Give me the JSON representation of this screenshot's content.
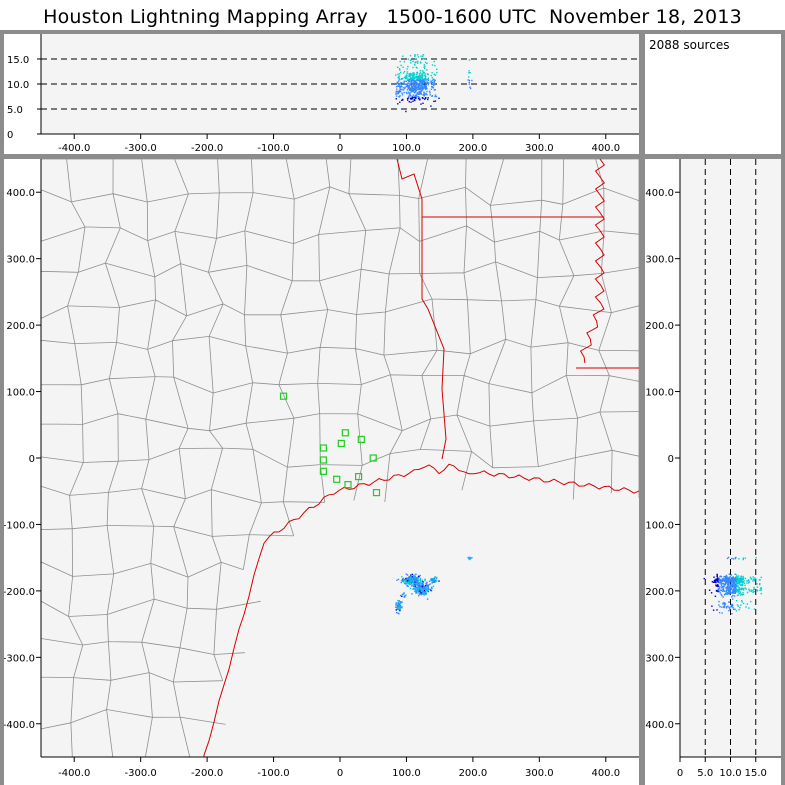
{
  "title": {
    "text": "Houston Lightning Mapping Array   1500-1600 UTC  November 18, 2013"
  },
  "source_count": "2088 sources",
  "colors": {
    "panel_bg": "#f4f4f4",
    "frame": "#8c8c8c",
    "county_lines": "#8f8f8f",
    "state_coast_lines": "#d40000",
    "stations": "#22cc22",
    "source_low": "#0000c8",
    "source_mid": "#3388ff",
    "source_high": "#00d0d0"
  },
  "axes": {
    "x_ticks": [
      "-400.0",
      "-300.0",
      "-200.0",
      "-100.0",
      "0",
      "100.0",
      "200.0",
      "300.0",
      "400.0"
    ],
    "y_ticks": [
      "400.0",
      "300.0",
      "200.0",
      "100.0",
      "0",
      "-100.0",
      "-200.0",
      "-300.0",
      "-400.0"
    ],
    "alt_ticks": [
      "0",
      "5.0",
      "10.0",
      "15.0"
    ]
  },
  "map": {
    "xlim_km": [
      -450,
      450
    ],
    "ylim_km": [
      -450,
      450
    ],
    "alt_km": [
      0,
      20
    ],
    "stations_km": [
      [
        -85,
        93
      ],
      [
        -25,
        15
      ],
      [
        -25,
        -20
      ],
      [
        -25,
        -3
      ],
      [
        -5,
        -32
      ],
      [
        2,
        22
      ],
      [
        8,
        38
      ],
      [
        12,
        -40
      ],
      [
        28,
        -28
      ],
      [
        32,
        28
      ],
      [
        50,
        0
      ],
      [
        55,
        -52
      ]
    ],
    "source_clusters": [
      {
        "x": 107,
        "y": -183,
        "sx": 12,
        "sy": 6,
        "n": 260
      },
      {
        "x": 122,
        "y": -196,
        "sx": 10,
        "sy": 8,
        "n": 220
      },
      {
        "x": 140,
        "y": -183,
        "sx": 5,
        "sy": 4,
        "n": 40
      },
      {
        "x": 88,
        "y": -222,
        "sx": 4,
        "sy": 6,
        "n": 60
      },
      {
        "x": 95,
        "y": -206,
        "sx": 3,
        "sy": 3,
        "n": 10
      },
      {
        "x": 193,
        "y": -150,
        "sx": 3,
        "sy": 2,
        "n": 12
      }
    ]
  }
}
